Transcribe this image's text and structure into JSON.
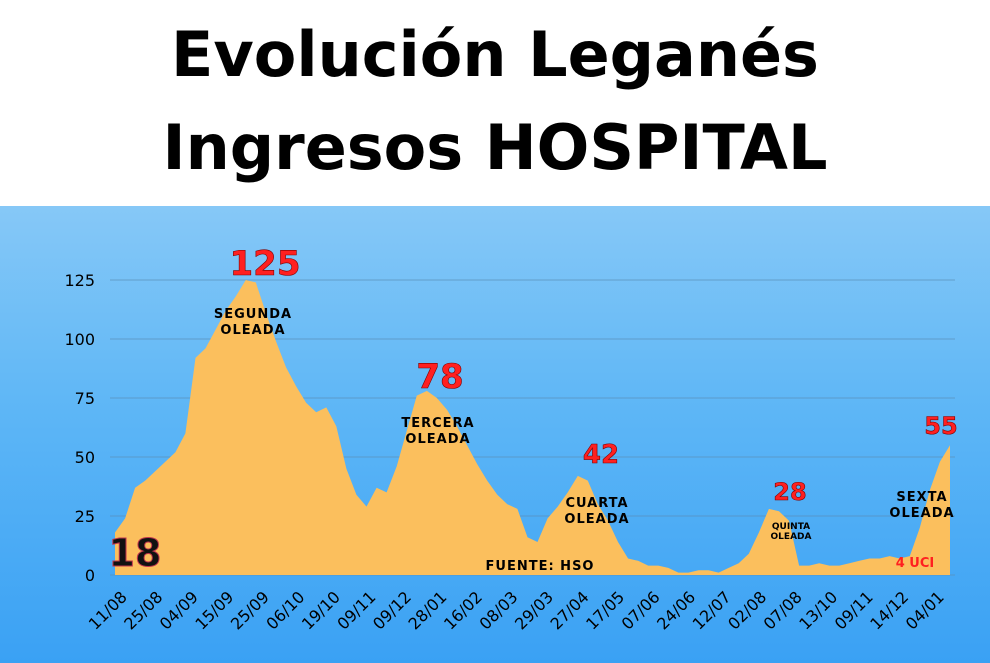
{
  "title_line1": "Evolución Leganés",
  "title_line2": "Ingresos HOSPITAL",
  "colors": {
    "area": "#fbbf5d",
    "peak_label": "#ff2020",
    "grid": "#5a8fb8"
  },
  "chart_data": {
    "type": "area",
    "title": "Evolución Leganés Ingresos HOSPITAL",
    "xlabel": "",
    "ylabel": "",
    "ylim": [
      0,
      135
    ],
    "yticks": [
      0,
      25,
      50,
      75,
      100,
      125
    ],
    "grid": "horizontal",
    "x_ticks": [
      "11/08",
      "25/08",
      "04/09",
      "15/09",
      "25/09",
      "06/10",
      "19/10",
      "09/11",
      "09/12",
      "28/01",
      "16/02",
      "08/03",
      "29/03",
      "27/04",
      "17/05",
      "07/06",
      "24/06",
      "12/07",
      "02/08",
      "07/08",
      "13/10",
      "09/11",
      "14/12",
      "04/01"
    ],
    "values": [
      18,
      24,
      37,
      40,
      44,
      48,
      52,
      60,
      92,
      96,
      104,
      112,
      118,
      125,
      124,
      111,
      99,
      88,
      80,
      73,
      69,
      71,
      63,
      45,
      34,
      29,
      37,
      35,
      46,
      61,
      76,
      78,
      75,
      70,
      63,
      55,
      47,
      40,
      34,
      30,
      28,
      16,
      14,
      24,
      29,
      35,
      42,
      40,
      30,
      23,
      14,
      7,
      6,
      4,
      4,
      3,
      1,
      1,
      2,
      2,
      1,
      3,
      5,
      9,
      18,
      28,
      27,
      23,
      4,
      4,
      5,
      4,
      4,
      5,
      6,
      7,
      7,
      8,
      7,
      8,
      20,
      36,
      48,
      55
    ],
    "peaks": [
      {
        "label": "125",
        "value": 125
      },
      {
        "label": "78",
        "value": 78
      },
      {
        "label": "42",
        "value": 42
      },
      {
        "label": "28",
        "value": 28
      },
      {
        "label": "55",
        "value": 55
      }
    ],
    "start_label": "18",
    "annotations": [
      {
        "lines": [
          "SEGUNDA",
          "OLEADA"
        ]
      },
      {
        "lines": [
          "TERCERA",
          "OLEADA"
        ]
      },
      {
        "lines": [
          "CUARTA",
          "OLEADA"
        ]
      },
      {
        "lines": [
          "QUINTA",
          "OLEADA"
        ]
      },
      {
        "lines": [
          "SEXTA",
          "OLEADA"
        ]
      }
    ],
    "source": "FUENTE: HSO",
    "uci_note": "4 UCI"
  }
}
